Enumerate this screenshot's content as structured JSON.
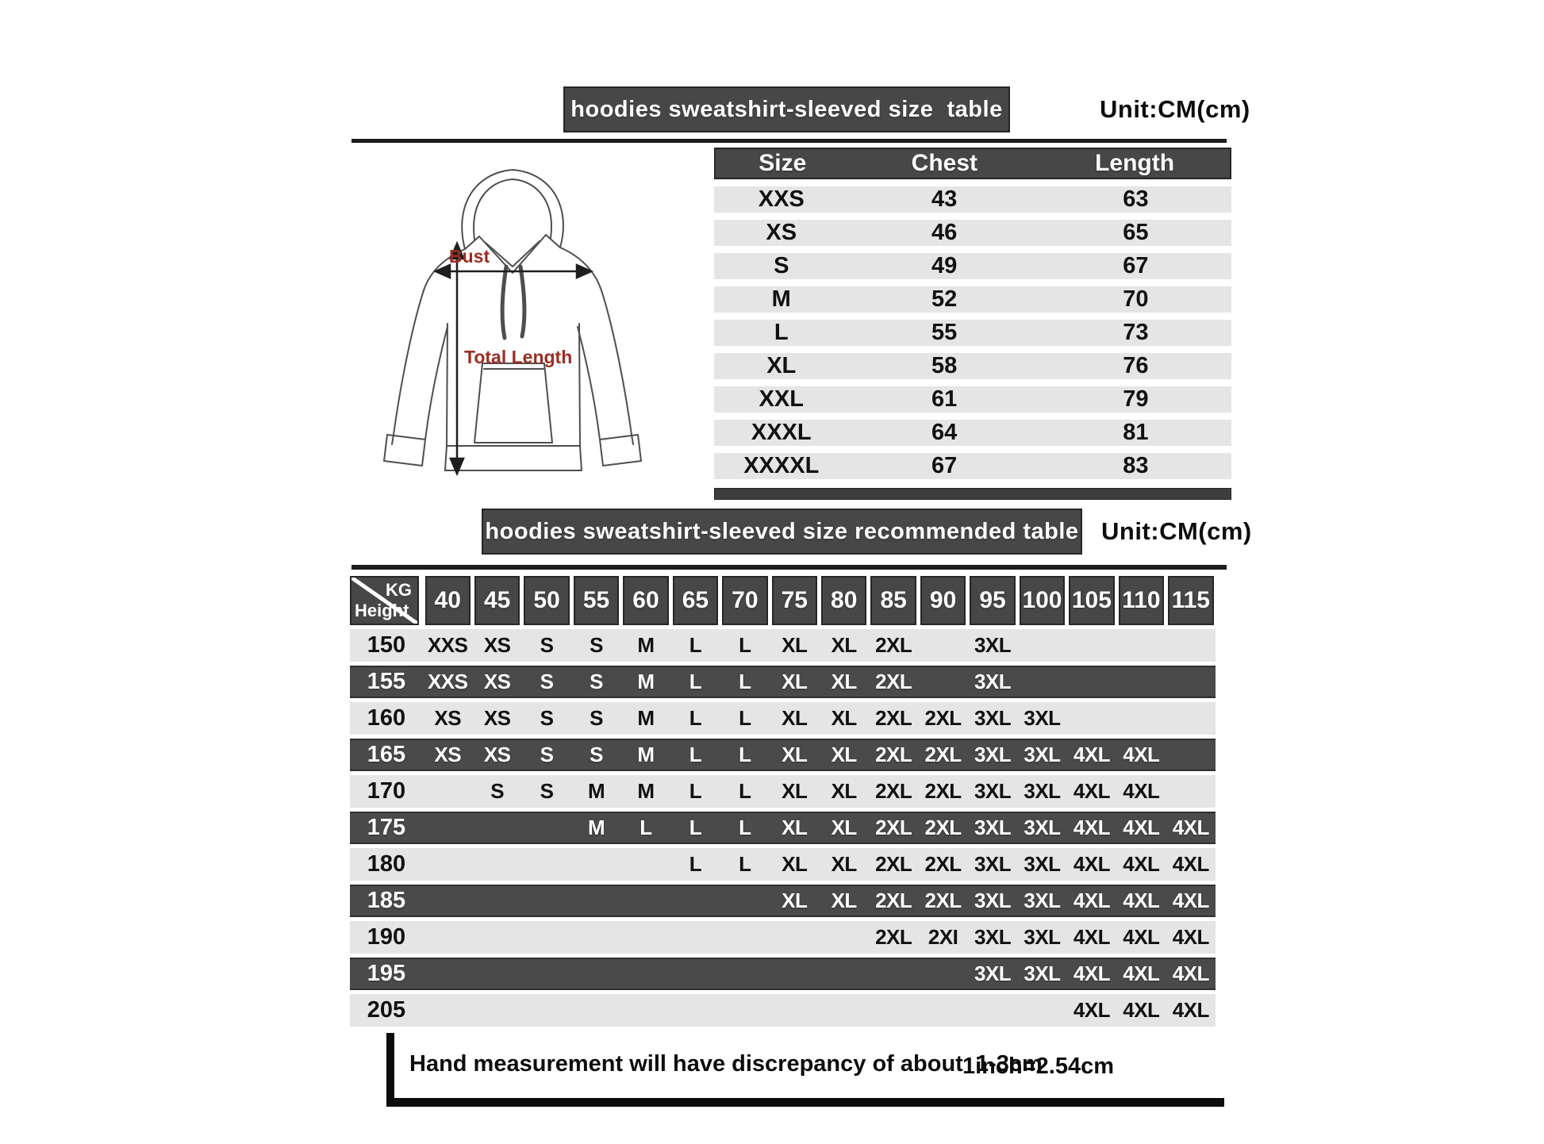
{
  "size_table": {
    "title": "hoodies sweatshirt-sleeved size  table",
    "unit": "Unit:CM(cm)",
    "columns": [
      "Size",
      "Chest",
      "Length"
    ],
    "rows": [
      [
        "XXS",
        "43",
        "63"
      ],
      [
        "XS",
        "46",
        "65"
      ],
      [
        "S",
        "49",
        "67"
      ],
      [
        "M",
        "52",
        "70"
      ],
      [
        "L",
        "55",
        "73"
      ],
      [
        "XL",
        "58",
        "76"
      ],
      [
        "XXL",
        "61",
        "79"
      ],
      [
        "XXXL",
        "64",
        "81"
      ],
      [
        "XXXXL",
        "67",
        "83"
      ]
    ]
  },
  "diagram": {
    "bust_label": "Bust",
    "total_length_label": "Total Length"
  },
  "recommended_table": {
    "title": "hoodies sweatshirt-sleeved size recommended table",
    "unit": "Unit:CM(cm)",
    "corner": {
      "top": "KG",
      "bottom": "Height"
    },
    "weight_columns": [
      "40",
      "45",
      "50",
      "55",
      "60",
      "65",
      "70",
      "75",
      "80",
      "85",
      "90",
      "95",
      "100",
      "105",
      "110",
      "115"
    ],
    "rows": [
      {
        "height": "150",
        "cells": [
          "XXS",
          "XS",
          "S",
          "S",
          "M",
          "L",
          "L",
          "XL",
          "XL",
          "2XL",
          "",
          "3XL",
          "",
          "",
          "",
          ""
        ]
      },
      {
        "height": "155",
        "cells": [
          "XXS",
          "XS",
          "S",
          "S",
          "M",
          "L",
          "L",
          "XL",
          "XL",
          "2XL",
          "",
          "3XL",
          "",
          "",
          "",
          ""
        ]
      },
      {
        "height": "160",
        "cells": [
          "XS",
          "XS",
          "S",
          "S",
          "M",
          "L",
          "L",
          "XL",
          "XL",
          "2XL",
          "2XL",
          "3XL",
          "3XL",
          "",
          "",
          ""
        ]
      },
      {
        "height": "165",
        "cells": [
          "XS",
          "XS",
          "S",
          "S",
          "M",
          "L",
          "L",
          "XL",
          "XL",
          "2XL",
          "2XL",
          "3XL",
          "3XL",
          "4XL",
          "4XL",
          ""
        ]
      },
      {
        "height": "170",
        "cells": [
          "",
          "S",
          "S",
          "M",
          "M",
          "L",
          "L",
          "XL",
          "XL",
          "2XL",
          "2XL",
          "3XL",
          "3XL",
          "4XL",
          "4XL",
          ""
        ]
      },
      {
        "height": "175",
        "cells": [
          "",
          "",
          "",
          "M",
          "L",
          "L",
          "L",
          "XL",
          "XL",
          "2XL",
          "2XL",
          "3XL",
          "3XL",
          "4XL",
          "4XL",
          "4XL"
        ]
      },
      {
        "height": "180",
        "cells": [
          "",
          "",
          "",
          "",
          "",
          "L",
          "L",
          "XL",
          "XL",
          "2XL",
          "2XL",
          "3XL",
          "3XL",
          "4XL",
          "4XL",
          "4XL"
        ]
      },
      {
        "height": "185",
        "cells": [
          "",
          "",
          "",
          "",
          "",
          "",
          "",
          "XL",
          "XL",
          "2XL",
          "2XL",
          "3XL",
          "3XL",
          "4XL",
          "4XL",
          "4XL"
        ]
      },
      {
        "height": "190",
        "cells": [
          "",
          "",
          "",
          "",
          "",
          "",
          "",
          "",
          "",
          "2XL",
          "2XI",
          "3XL",
          "3XL",
          "4XL",
          "4XL",
          "4XL"
        ]
      },
      {
        "height": "195",
        "cells": [
          "",
          "",
          "",
          "",
          "",
          "",
          "",
          "",
          "",
          "",
          "",
          "3XL",
          "3XL",
          "4XL",
          "4XL",
          "4XL"
        ]
      },
      {
        "height": "205",
        "cells": [
          "",
          "",
          "",
          "",
          "",
          "",
          "",
          "",
          "",
          "",
          "",
          "",
          "",
          "4XL",
          "4XL",
          "4XL"
        ]
      }
    ]
  },
  "footer": {
    "note": "Hand measurement will have discrepancy of about  1-3cm",
    "conversion": "1inch=2.54cm"
  },
  "colors": {
    "bar_dark": "#474747",
    "bar_border": "#262626",
    "row_light": "#e5e5e5",
    "row_dark": "#4a4a4a",
    "accent_red": "#9b2d24",
    "rule_dark": "#1c1c1c"
  }
}
